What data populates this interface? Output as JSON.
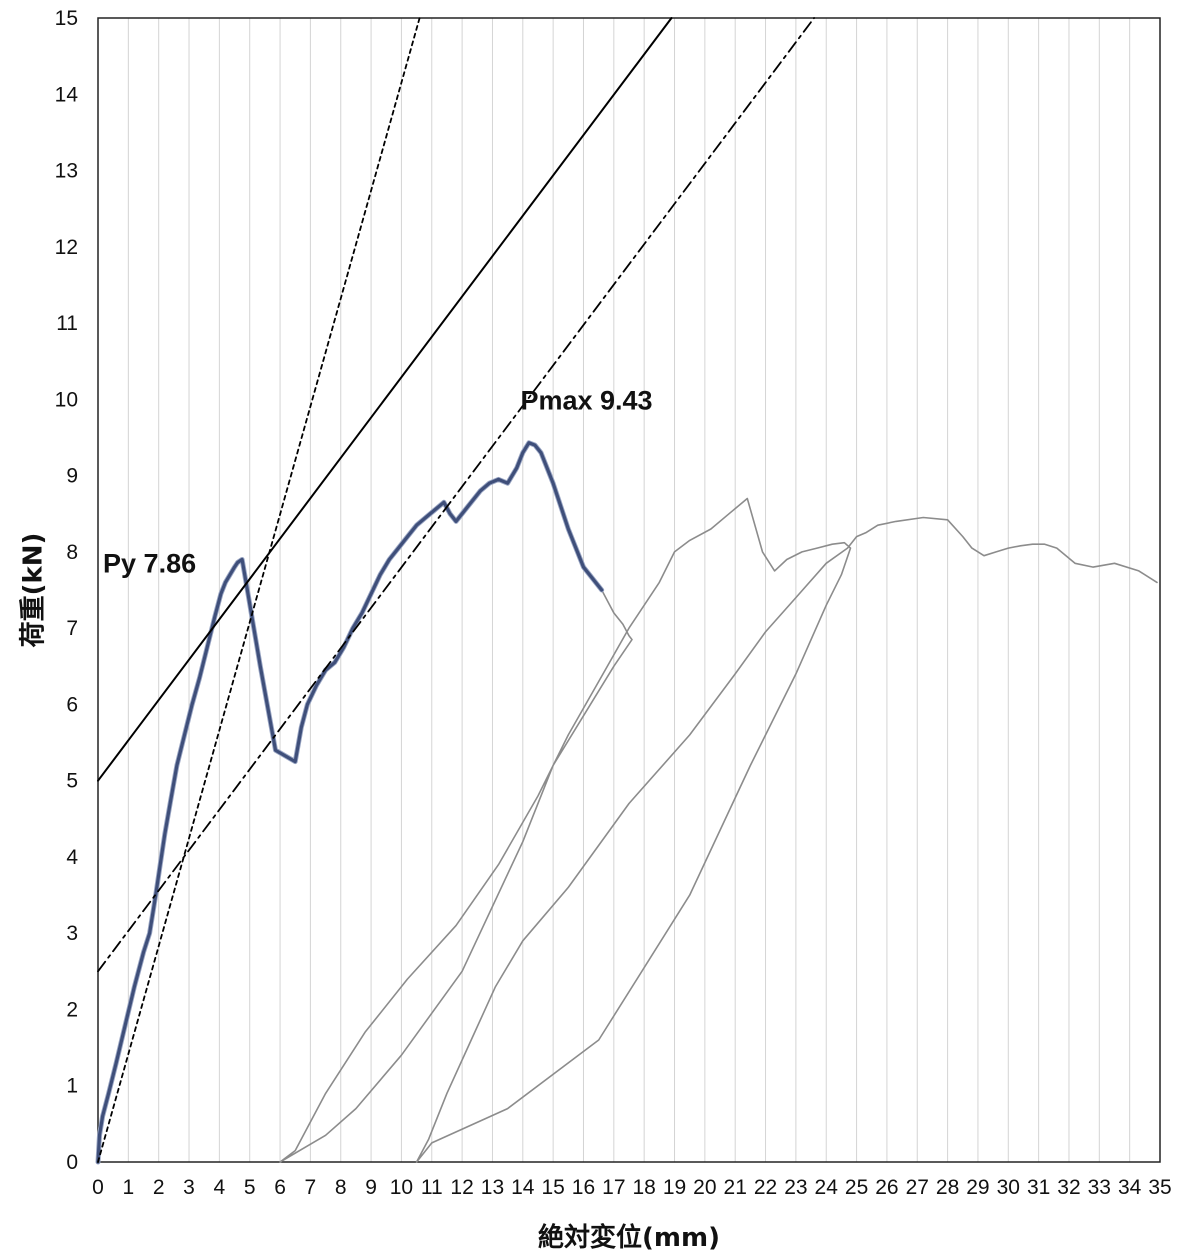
{
  "chart_data": {
    "type": "line",
    "title": "",
    "xlabel": "絶対変位(mm)",
    "ylabel": "荷重(kN)",
    "xlim": [
      0,
      35
    ],
    "ylim": [
      0,
      15
    ],
    "x_ticks": [
      0,
      1,
      2,
      3,
      4,
      5,
      6,
      7,
      8,
      9,
      10,
      11,
      12,
      13,
      14,
      15,
      16,
      17,
      18,
      19,
      20,
      21,
      22,
      23,
      24,
      25,
      26,
      27,
      28,
      29,
      30,
      31,
      32,
      33,
      34,
      35
    ],
    "y_ticks": [
      0,
      1,
      2,
      3,
      4,
      5,
      6,
      7,
      8,
      9,
      10,
      11,
      12,
      13,
      14,
      15
    ],
    "grid": "vertical",
    "legend": "none",
    "annotations": [
      {
        "text": "Py 7.86",
        "x": 1.7,
        "y": 7.86
      },
      {
        "text": "Pmax 9.43",
        "x": 16.1,
        "y": 10.0
      }
    ],
    "series": [
      {
        "style": "gray",
        "color": "#8c8c8c",
        "x": [
          0,
          0.05,
          0.15,
          0.35,
          0.6,
          0.9,
          1.2,
          1.5,
          1.7,
          1.9,
          2.05,
          2.2,
          2.4,
          2.6,
          2.85,
          3.1,
          3.35,
          3.6,
          3.85,
          4.05,
          4.2,
          4.35,
          4.5,
          4.6,
          4.75,
          4.9,
          5.35,
          5.85,
          6.5,
          6.7,
          6.9,
          7.2,
          7.5,
          7.8,
          8.1,
          8.4,
          8.7,
          9.0,
          9.3,
          9.6,
          9.9,
          10.2,
          10.5,
          10.8,
          11.1,
          11.4,
          11.6,
          11.8,
          12.0,
          12.3,
          12.6,
          12.9,
          13.2,
          13.5,
          13.8,
          14.0,
          14.2,
          14.4,
          14.6,
          15.0,
          15.5,
          16.0,
          16.6,
          17.0,
          17.3,
          17.5,
          17.6,
          17.0,
          15.0,
          14.0,
          12.0,
          10.0,
          8.5,
          7.5,
          6.0,
          6.5,
          7.5,
          8.8,
          10.2,
          11.8,
          13.2,
          14.5,
          15.5,
          16.5,
          17.5,
          18.5,
          19.0,
          19.5,
          20.2,
          20.8,
          21.4,
          21.9,
          22.3,
          22.7,
          23.2,
          23.7,
          24.2,
          24.6,
          24.8,
          24.5,
          24.0,
          23.0,
          21.5,
          19.5,
          16.5,
          13.5,
          11.0,
          10.5,
          10.9,
          11.5,
          12.3,
          13.1,
          14.0,
          15.5,
          17.5,
          19.5,
          21.0,
          22.0,
          23.0,
          24.0,
          24.7,
          25.0,
          25.3,
          25.7,
          26.3,
          27.2,
          28.0,
          28.5,
          28.8,
          29.2,
          29.6,
          30.0,
          30.4,
          30.8,
          31.2,
          31.6,
          32.2,
          32.8,
          33.5,
          34.3,
          34.9
        ],
        "y": [
          0,
          0.35,
          0.6,
          0.9,
          1.3,
          1.8,
          2.3,
          2.75,
          3.0,
          3.5,
          3.9,
          4.3,
          4.75,
          5.2,
          5.6,
          6.0,
          6.35,
          6.75,
          7.15,
          7.45,
          7.6,
          7.7,
          7.8,
          7.86,
          7.9,
          7.55,
          6.5,
          5.4,
          5.25,
          5.7,
          6.0,
          6.25,
          6.45,
          6.55,
          6.75,
          7.0,
          7.2,
          7.45,
          7.7,
          7.9,
          8.05,
          8.2,
          8.35,
          8.45,
          8.55,
          8.65,
          8.5,
          8.4,
          8.5,
          8.65,
          8.8,
          8.9,
          8.95,
          8.9,
          9.1,
          9.3,
          9.43,
          9.4,
          9.3,
          8.9,
          8.3,
          7.8,
          7.5,
          7.2,
          7.05,
          6.9,
          6.85,
          6.5,
          5.2,
          4.2,
          2.5,
          1.4,
          0.7,
          0.35,
          0,
          0.15,
          0.9,
          1.7,
          2.4,
          3.1,
          3.9,
          4.8,
          5.6,
          6.3,
          7.0,
          7.6,
          8.0,
          8.15,
          8.3,
          8.5,
          8.7,
          8.0,
          7.75,
          7.9,
          8.0,
          8.05,
          8.1,
          8.12,
          8.05,
          7.7,
          7.3,
          6.4,
          5.2,
          3.5,
          1.6,
          0.7,
          0.25,
          0,
          0.3,
          0.9,
          1.6,
          2.3,
          2.9,
          3.6,
          4.7,
          5.6,
          6.4,
          6.95,
          7.4,
          7.85,
          8.05,
          8.2,
          8.25,
          8.35,
          8.4,
          8.45,
          8.42,
          8.2,
          8.05,
          7.95,
          8.0,
          8.05,
          8.08,
          8.1,
          8.1,
          8.05,
          7.85,
          7.8,
          7.85,
          7.75,
          7.6
        ]
      },
      {
        "style": "dark-blue",
        "color": "#3f4f7a",
        "x": [
          0,
          0.05,
          0.15,
          0.35,
          0.6,
          0.9,
          1.2,
          1.5,
          1.7,
          1.9,
          2.05,
          2.2,
          2.4,
          2.6,
          2.85,
          3.1,
          3.35,
          3.6,
          3.85,
          4.05,
          4.2,
          4.35,
          4.5,
          4.6,
          4.75,
          4.9,
          5.35,
          5.85,
          6.5,
          6.7,
          6.9,
          7.2,
          7.5,
          7.8,
          8.1,
          8.4,
          8.7,
          9.0,
          9.3,
          9.6,
          9.9,
          10.2,
          10.5,
          10.8,
          11.1,
          11.4,
          11.6,
          11.8,
          12.0,
          12.3,
          12.6,
          12.9,
          13.2,
          13.5,
          13.8,
          14.0,
          14.2,
          14.4,
          14.6,
          15.0,
          15.5,
          16.0,
          16.6
        ],
        "y": [
          0,
          0.35,
          0.6,
          0.9,
          1.3,
          1.8,
          2.3,
          2.75,
          3.0,
          3.5,
          3.9,
          4.3,
          4.75,
          5.2,
          5.6,
          6.0,
          6.35,
          6.75,
          7.15,
          7.45,
          7.6,
          7.7,
          7.8,
          7.86,
          7.9,
          7.55,
          6.5,
          5.4,
          5.25,
          5.7,
          6.0,
          6.25,
          6.45,
          6.55,
          6.75,
          7.0,
          7.2,
          7.45,
          7.7,
          7.9,
          8.05,
          8.2,
          8.35,
          8.45,
          8.55,
          8.65,
          8.5,
          8.4,
          8.5,
          8.65,
          8.8,
          8.9,
          8.95,
          8.9,
          9.1,
          9.3,
          9.43,
          9.4,
          9.3,
          8.9,
          8.3,
          7.8,
          7.5
        ]
      },
      {
        "style": "solid",
        "color": "#000000",
        "x": [
          0,
          18.9
        ],
        "y": [
          5.0,
          15.0
        ]
      },
      {
        "style": "dotted",
        "color": "#000000",
        "x": [
          0,
          10.6
        ],
        "y": [
          0,
          15.0
        ]
      },
      {
        "style": "dash-dot",
        "color": "#000000",
        "x": [
          0,
          23.6
        ],
        "y": [
          2.5,
          15.0
        ]
      }
    ]
  }
}
